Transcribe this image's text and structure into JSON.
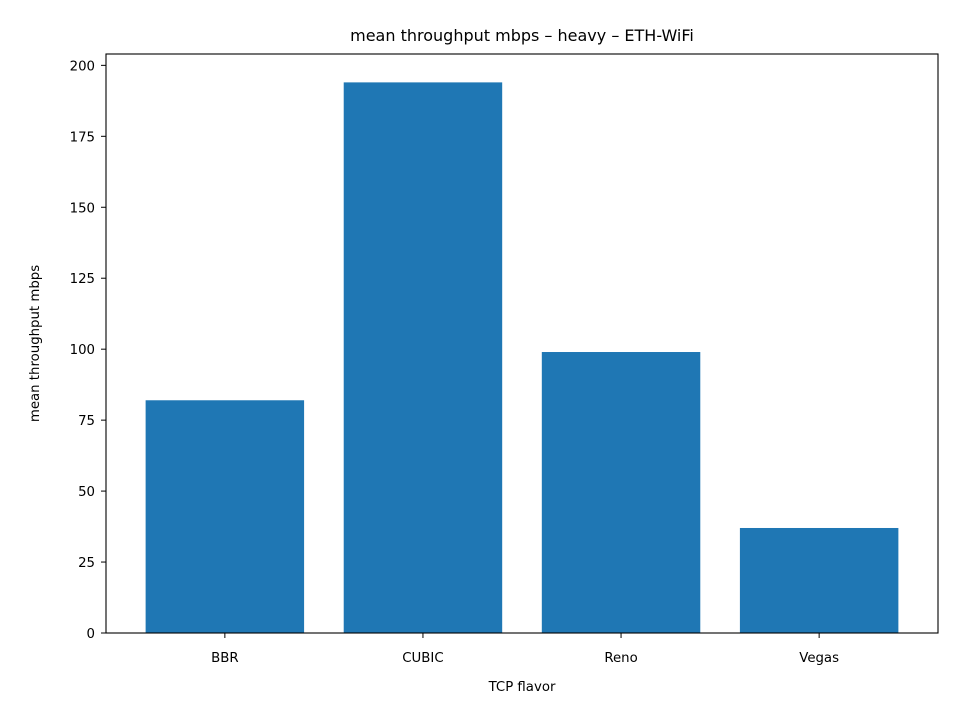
{
  "chart_data": {
    "type": "bar",
    "title": "mean throughput mbps – heavy – ETH-WiFi",
    "xlabel": "TCP flavor",
    "ylabel": "mean throughput mbps",
    "categories": [
      "BBR",
      "CUBIC",
      "Reno",
      "Vegas"
    ],
    "values": [
      82,
      194,
      99,
      37
    ],
    "ylim": [
      0,
      204
    ],
    "yticks": [
      0,
      25,
      50,
      75,
      100,
      125,
      150,
      175,
      200
    ],
    "bar_color": "#1f77b4",
    "grid": false,
    "legend": "none"
  }
}
